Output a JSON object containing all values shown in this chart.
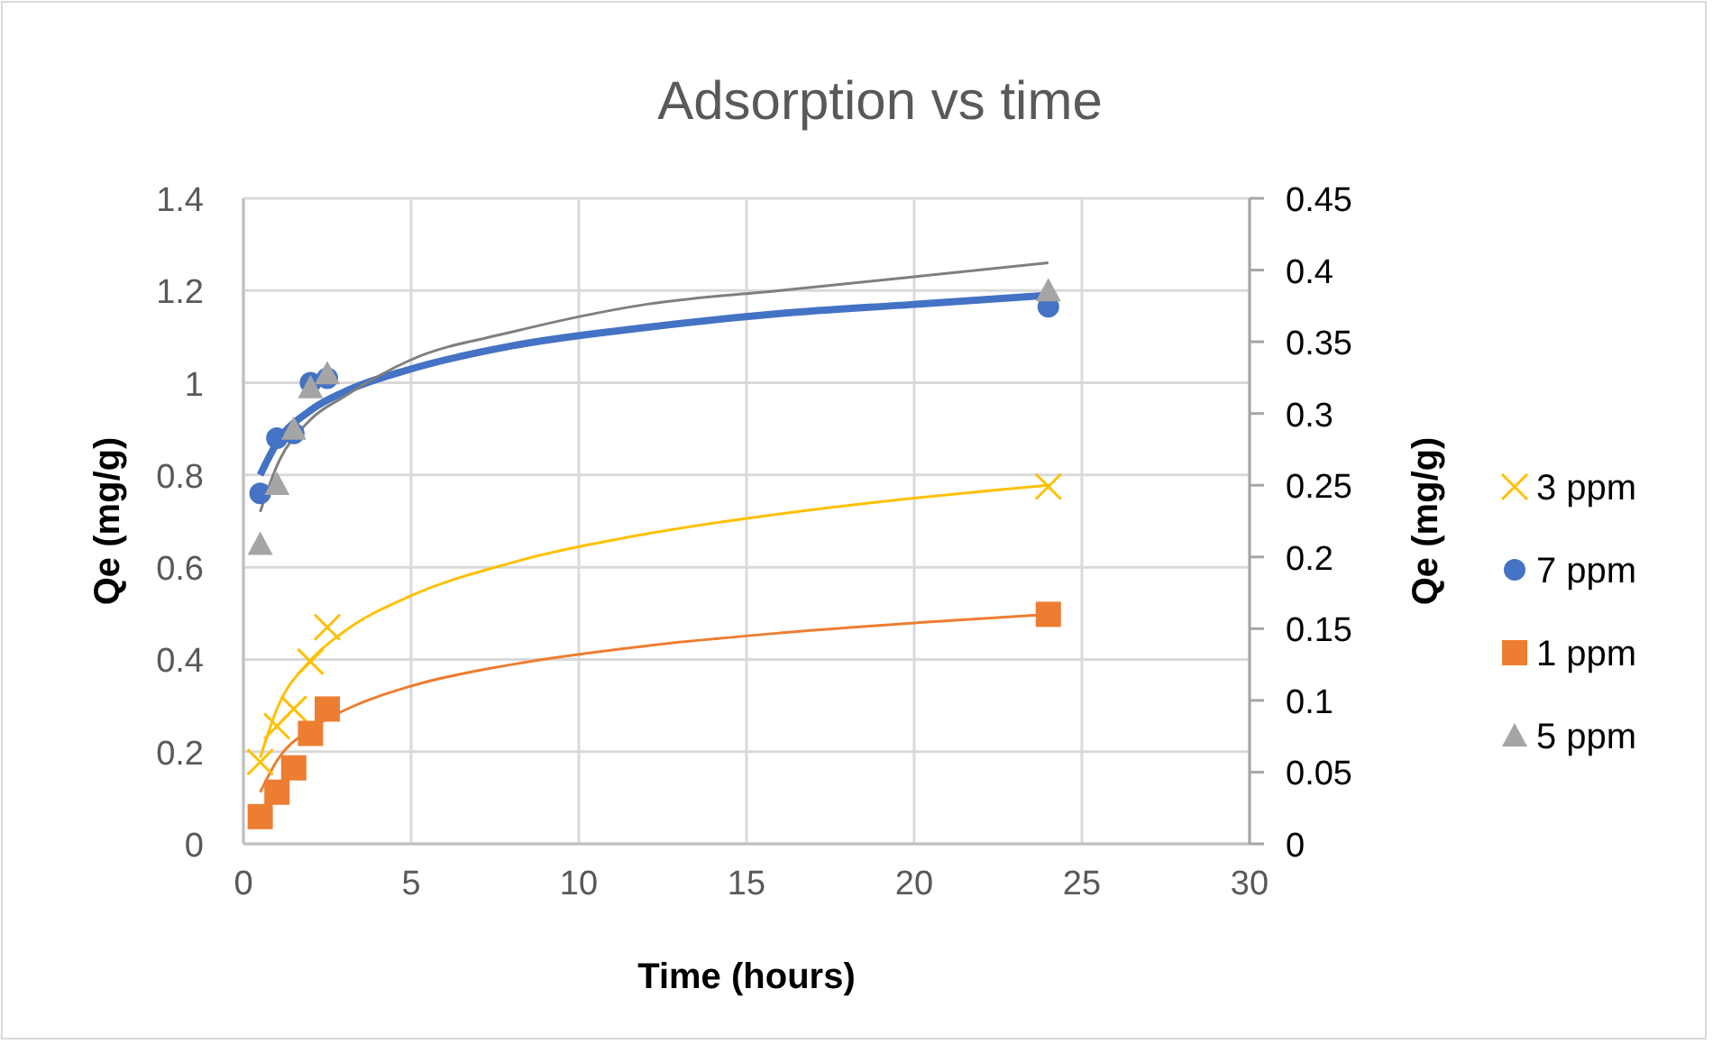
{
  "chart_data": {
    "type": "scatter",
    "title": "Adsorption vs time",
    "xlabel": "Time (hours)",
    "ylabel": "Qe (mg/g)",
    "y2label": "Qe (mg/g)",
    "xlim": [
      0,
      30
    ],
    "xticks": [
      0,
      5,
      10,
      15,
      20,
      25,
      30
    ],
    "ylim": [
      0,
      1.4
    ],
    "yticks": [
      0,
      0.2,
      0.4,
      0.6,
      0.8,
      1,
      1.2,
      1.4
    ],
    "y2lim": [
      0,
      0.45
    ],
    "y2ticks": [
      0,
      0.05,
      0.1,
      0.15,
      0.2,
      0.25,
      0.3,
      0.35,
      0.4,
      0.45
    ],
    "grid": true,
    "legend": "right",
    "series": [
      {
        "type": "line",
        "color": "#4472c4",
        "marker": "none",
        "x": [
          0.5,
          1,
          2,
          3,
          5,
          8,
          12,
          16,
          20,
          24
        ],
        "values": [
          0.8,
          0.87,
          0.94,
          0.98,
          1.03,
          1.08,
          1.12,
          1.15,
          1.17,
          1.19
        ]
      },
      {
        "type": "line",
        "color": "#7f7f7f",
        "marker": "none",
        "x": [
          0.5,
          1,
          2,
          3,
          5,
          8,
          12,
          16,
          20,
          24
        ],
        "values": [
          0.72,
          0.82,
          0.92,
          0.97,
          1.05,
          1.11,
          1.17,
          1.2,
          1.23,
          1.26
        ]
      },
      {
        "type": "line",
        "color": "#ffc000",
        "marker": "none",
        "axis": "y2",
        "x": [
          0.5,
          1,
          2,
          3,
          5,
          8,
          12,
          16,
          20,
          24
        ],
        "values": [
          0.06,
          0.094,
          0.128,
          0.148,
          0.173,
          0.196,
          0.216,
          0.23,
          0.241,
          0.25
        ]
      },
      {
        "type": "line",
        "color": "#ed7d31",
        "marker": "none",
        "axis": "y2",
        "x": [
          0.5,
          1,
          2,
          3,
          5,
          8,
          12,
          16,
          20,
          24
        ],
        "values": [
          0.036,
          0.058,
          0.08,
          0.093,
          0.11,
          0.125,
          0.138,
          0.147,
          0.154,
          0.16
        ]
      },
      {
        "name": "3 ppm",
        "color": "#ffc000",
        "marker": "cross",
        "axis": "y2",
        "x": [
          0.5,
          1,
          1.5,
          2,
          2.5,
          24
        ],
        "values": [
          0.057,
          0.082,
          0.094,
          0.127,
          0.151,
          0.249
        ]
      },
      {
        "name": "7 ppm",
        "color": "#4472c4",
        "marker": "circle",
        "x": [
          0.5,
          1,
          1.5,
          2,
          2.5,
          24
        ],
        "values": [
          0.76,
          0.88,
          0.89,
          1.0,
          1.01,
          1.165
        ]
      },
      {
        "name": "1 ppm",
        "color": "#ed7d31",
        "marker": "square",
        "axis": "y2",
        "x": [
          0.5,
          1,
          1.5,
          2,
          2.5,
          24
        ],
        "values": [
          0.019,
          0.036,
          0.053,
          0.077,
          0.094,
          0.16
        ]
      },
      {
        "name": "5 ppm",
        "color": "#a5a5a5",
        "marker": "triangle",
        "x": [
          0.5,
          1,
          1.5,
          2,
          2.5,
          24
        ],
        "values": [
          0.65,
          0.78,
          0.9,
          0.99,
          1.02,
          1.2
        ]
      }
    ]
  }
}
